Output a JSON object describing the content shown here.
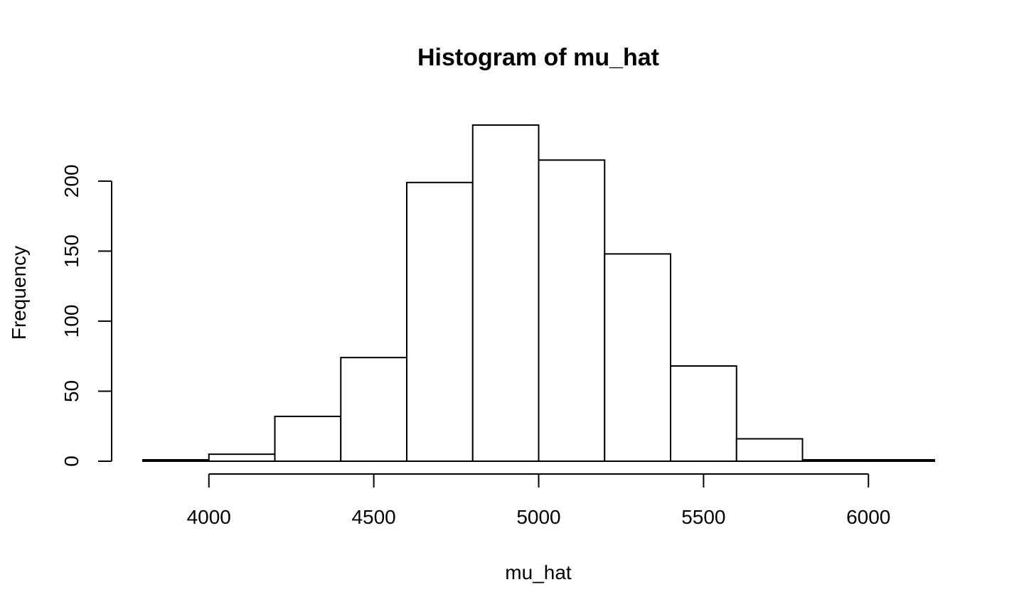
{
  "chart_data": {
    "type": "bar",
    "title": "Histogram of mu_hat",
    "xlabel": "mu_hat",
    "ylabel": "Frequency",
    "bins": [
      {
        "start": 3800,
        "end": 4000,
        "value": 1
      },
      {
        "start": 4000,
        "end": 4200,
        "value": 5
      },
      {
        "start": 4200,
        "end": 4400,
        "value": 32
      },
      {
        "start": 4400,
        "end": 4600,
        "value": 74
      },
      {
        "start": 4600,
        "end": 4800,
        "value": 199
      },
      {
        "start": 4800,
        "end": 5000,
        "value": 240
      },
      {
        "start": 5000,
        "end": 5200,
        "value": 215
      },
      {
        "start": 5200,
        "end": 5400,
        "value": 148
      },
      {
        "start": 5400,
        "end": 5600,
        "value": 68
      },
      {
        "start": 5600,
        "end": 5800,
        "value": 16
      },
      {
        "start": 5800,
        "end": 6000,
        "value": 1
      },
      {
        "start": 6000,
        "end": 6200,
        "value": 1
      }
    ],
    "xlim": [
      3800,
      6200
    ],
    "x_axis_range": [
      4000,
      6000
    ],
    "x_ticks": [
      "4000",
      "4500",
      "5000",
      "5500",
      "6000"
    ],
    "x_tick_values": [
      4000,
      4500,
      5000,
      5500,
      6000
    ],
    "ylim": [
      0,
      240
    ],
    "y_axis_range": [
      0,
      200
    ],
    "y_ticks": [
      "0",
      "50",
      "100",
      "150",
      "200"
    ],
    "y_tick_values": [
      0,
      50,
      100,
      150,
      200
    ],
    "grid": false,
    "legend": "none",
    "colors": {
      "fill": "#ffffff",
      "stroke": "#000000"
    }
  }
}
